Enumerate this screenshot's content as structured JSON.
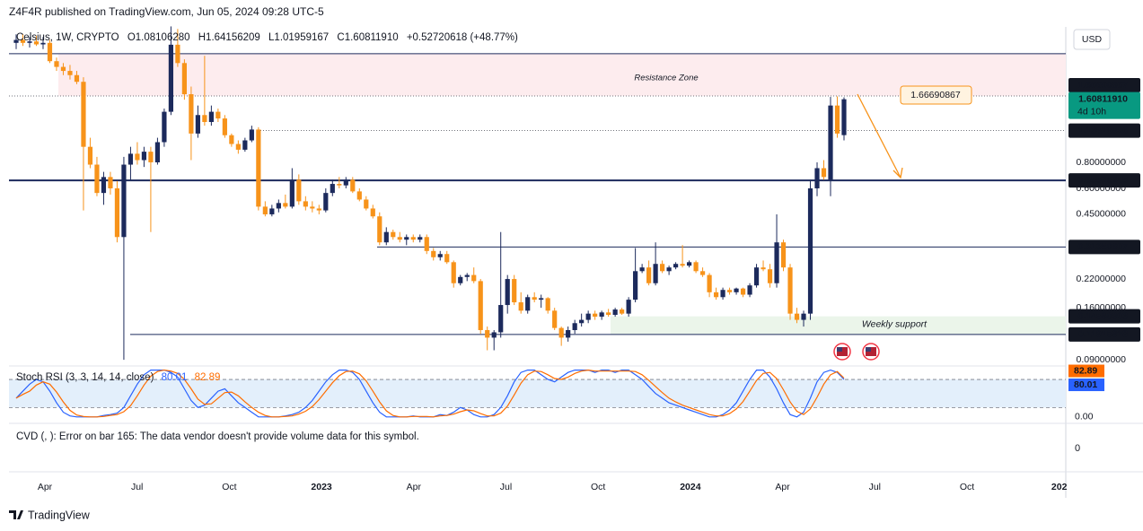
{
  "header": {
    "published": "Z4F4R published on TradingView.com, Jun 05, 2024 09:28 UTC-5",
    "symbol": "Celsius, 1W, CRYPTO",
    "ohlc_prefixes": [
      "O",
      "H",
      "L",
      "C"
    ],
    "change": "+0.52720618 (+48.77%)",
    "currency": "USD",
    "countdown": "4d 10h",
    "logo": "TradingView"
  },
  "chart_data": [
    {
      "type": "candlestick",
      "up_color": "#1c2a5c",
      "down_color": "#f7931a",
      "last_color": "#089981",
      "log_scale": true,
      "ylim": [
        0.0866,
        3.58
      ],
      "yticks": [
        {
          "value": 0.8,
          "label": "0.80000000"
        },
        {
          "value": 0.6,
          "label": "0.60000000"
        },
        {
          "value": 0.45,
          "label": "0.45000000"
        },
        {
          "value": 0.22,
          "label": "0.22000000"
        },
        {
          "value": 0.16,
          "label": "0.16000000"
        },
        {
          "value": 0.09,
          "label": "0.09000000"
        }
      ],
      "xticks": [
        "Apr",
        "Jul",
        "Oct",
        "2023",
        "Apr",
        "Jul",
        "Oct",
        "2024",
        "Apr",
        "Jul",
        "Oct",
        "202"
      ],
      "last_labels": [
        "1.08106280",
        "1.64156209",
        "1.01959167",
        "1.60811910"
      ],
      "levels": [
        {
          "value": 2.66,
          "style": "solid",
          "axis_label": false
        },
        {
          "value": 1.66690867,
          "style": "dotted",
          "axis_label": true
        },
        {
          "value": 1.13618526,
          "style": "dotted",
          "axis_label": true
        },
        {
          "value": 0.65526245,
          "style": "thick",
          "axis_label": true
        },
        {
          "value": 0.31350607,
          "style": "solid",
          "axis_label": true
        },
        {
          "value": 0.14560803,
          "style": "none",
          "axis_label": true
        },
        {
          "value": 0.11915918,
          "style": "solid",
          "axis_label": true
        }
      ],
      "zones": [
        {
          "label": "Resistance Zone",
          "range": [
            1.66690867,
            2.66
          ],
          "color": "#fdecee"
        },
        {
          "label": "Weekly support",
          "range": [
            0.11915918,
            0.14560803
          ],
          "color": "#ebf5ea"
        }
      ],
      "candles": [
        [
          3.0,
          3.3,
          2.8,
          3.1
        ],
        [
          3.1,
          3.3,
          2.9,
          3.0
        ],
        [
          3.0,
          3.2,
          2.85,
          3.05
        ],
        [
          3.05,
          3.25,
          2.9,
          2.95
        ],
        [
          2.95,
          3.2,
          2.8,
          3.0
        ],
        [
          3.0,
          3.1,
          2.4,
          2.45
        ],
        [
          2.45,
          2.55,
          2.2,
          2.3
        ],
        [
          2.3,
          2.4,
          2.1,
          2.2
        ],
        [
          2.2,
          2.35,
          2.0,
          2.1
        ],
        [
          2.1,
          2.2,
          1.9,
          1.95
        ],
        [
          1.95,
          2.05,
          0.47,
          0.95
        ],
        [
          0.95,
          1.05,
          0.75,
          0.78
        ],
        [
          0.78,
          0.85,
          0.55,
          0.57
        ],
        [
          0.57,
          0.72,
          0.5,
          0.68
        ],
        [
          0.68,
          0.72,
          0.56,
          0.6
        ],
        [
          0.6,
          0.65,
          0.33,
          0.35
        ],
        [
          0.35,
          0.85,
          0.09,
          0.78
        ],
        [
          0.78,
          0.95,
          0.65,
          0.88
        ],
        [
          0.88,
          1.0,
          0.78,
          0.82
        ],
        [
          0.82,
          0.95,
          0.76,
          0.9
        ],
        [
          0.9,
          0.95,
          0.37,
          0.8
        ],
        [
          0.8,
          1.05,
          0.78,
          1.0
        ],
        [
          1.0,
          1.45,
          0.95,
          1.4
        ],
        [
          1.4,
          3.6,
          1.35,
          2.94
        ],
        [
          2.94,
          3.5,
          2.3,
          2.4
        ],
        [
          2.4,
          2.5,
          1.6,
          1.7
        ],
        [
          1.7,
          1.85,
          0.82,
          1.1
        ],
        [
          1.1,
          1.5,
          1.05,
          1.35
        ],
        [
          1.35,
          2.6,
          1.2,
          1.25
        ],
        [
          1.25,
          1.5,
          1.2,
          1.4
        ],
        [
          1.4,
          1.45,
          1.25,
          1.3
        ],
        [
          1.3,
          1.35,
          1.05,
          1.08
        ],
        [
          1.08,
          1.1,
          0.95,
          0.98
        ],
        [
          0.98,
          1.02,
          0.88,
          0.92
        ],
        [
          0.92,
          1.05,
          0.9,
          1.02
        ],
        [
          1.02,
          1.2,
          1.0,
          1.15
        ],
        [
          1.15,
          1.18,
          0.47,
          0.49
        ],
        [
          0.49,
          0.52,
          0.44,
          0.45
        ],
        [
          0.45,
          0.5,
          0.44,
          0.48
        ],
        [
          0.48,
          0.53,
          0.46,
          0.51
        ],
        [
          0.51,
          0.56,
          0.48,
          0.49
        ],
        [
          0.49,
          0.75,
          0.48,
          0.66
        ],
        [
          0.66,
          0.7,
          0.5,
          0.52
        ],
        [
          0.52,
          0.55,
          0.47,
          0.49
        ],
        [
          0.49,
          0.52,
          0.46,
          0.48
        ],
        [
          0.48,
          0.5,
          0.45,
          0.47
        ],
        [
          0.47,
          0.6,
          0.46,
          0.57
        ],
        [
          0.57,
          0.66,
          0.55,
          0.63
        ],
        [
          0.63,
          0.68,
          0.6,
          0.62
        ],
        [
          0.62,
          0.68,
          0.6,
          0.66
        ],
        [
          0.66,
          0.68,
          0.57,
          0.58
        ],
        [
          0.58,
          0.6,
          0.52,
          0.53
        ],
        [
          0.53,
          0.55,
          0.47,
          0.48
        ],
        [
          0.48,
          0.5,
          0.43,
          0.44
        ],
        [
          0.44,
          0.46,
          0.32,
          0.33
        ],
        [
          0.33,
          0.39,
          0.32,
          0.37
        ],
        [
          0.37,
          0.38,
          0.34,
          0.35
        ],
        [
          0.35,
          0.37,
          0.33,
          0.34
        ],
        [
          0.34,
          0.36,
          0.32,
          0.35
        ],
        [
          0.35,
          0.36,
          0.33,
          0.34
        ],
        [
          0.34,
          0.36,
          0.33,
          0.35
        ],
        [
          0.35,
          0.36,
          0.29,
          0.3
        ],
        [
          0.3,
          0.31,
          0.27,
          0.28
        ],
        [
          0.28,
          0.3,
          0.27,
          0.29
        ],
        [
          0.29,
          0.3,
          0.26,
          0.265
        ],
        [
          0.265,
          0.27,
          0.2,
          0.21
        ],
        [
          0.21,
          0.23,
          0.205,
          0.225
        ],
        [
          0.225,
          0.235,
          0.215,
          0.23
        ],
        [
          0.23,
          0.25,
          0.21,
          0.215
        ],
        [
          0.215,
          0.22,
          0.12,
          0.125
        ],
        [
          0.125,
          0.13,
          0.1,
          0.115
        ],
        [
          0.115,
          0.125,
          0.1,
          0.122
        ],
        [
          0.122,
          0.37,
          0.115,
          0.165
        ],
        [
          0.165,
          0.23,
          0.15,
          0.22
        ],
        [
          0.22,
          0.23,
          0.165,
          0.17
        ],
        [
          0.17,
          0.19,
          0.15,
          0.155
        ],
        [
          0.155,
          0.185,
          0.15,
          0.18
        ],
        [
          0.18,
          0.19,
          0.17,
          0.175
        ],
        [
          0.175,
          0.185,
          0.16,
          0.178
        ],
        [
          0.178,
          0.18,
          0.15,
          0.155
        ],
        [
          0.155,
          0.16,
          0.125,
          0.128
        ],
        [
          0.128,
          0.13,
          0.105,
          0.115
        ],
        [
          0.115,
          0.13,
          0.11,
          0.125
        ],
        [
          0.125,
          0.14,
          0.12,
          0.135
        ],
        [
          0.135,
          0.15,
          0.13,
          0.14
        ],
        [
          0.14,
          0.155,
          0.135,
          0.15
        ],
        [
          0.15,
          0.155,
          0.14,
          0.145
        ],
        [
          0.145,
          0.155,
          0.14,
          0.152
        ],
        [
          0.152,
          0.158,
          0.145,
          0.148
        ],
        [
          0.148,
          0.16,
          0.145,
          0.157
        ],
        [
          0.157,
          0.16,
          0.148,
          0.15
        ],
        [
          0.15,
          0.18,
          0.145,
          0.175
        ],
        [
          0.175,
          0.31,
          0.17,
          0.24
        ],
        [
          0.24,
          0.26,
          0.235,
          0.25
        ],
        [
          0.25,
          0.27,
          0.205,
          0.21
        ],
        [
          0.21,
          0.33,
          0.205,
          0.26
        ],
        [
          0.26,
          0.27,
          0.235,
          0.24
        ],
        [
          0.24,
          0.255,
          0.23,
          0.25
        ],
        [
          0.25,
          0.265,
          0.245,
          0.26
        ],
        [
          0.26,
          0.32,
          0.25,
          0.255
        ],
        [
          0.255,
          0.27,
          0.25,
          0.265
        ],
        [
          0.265,
          0.27,
          0.235,
          0.24
        ],
        [
          0.24,
          0.25,
          0.225,
          0.23
        ],
        [
          0.23,
          0.235,
          0.18,
          0.19
        ],
        [
          0.19,
          0.2,
          0.175,
          0.18
        ],
        [
          0.18,
          0.2,
          0.175,
          0.195
        ],
        [
          0.195,
          0.2,
          0.185,
          0.19
        ],
        [
          0.19,
          0.2,
          0.185,
          0.198
        ],
        [
          0.198,
          0.2,
          0.18,
          0.185
        ],
        [
          0.185,
          0.21,
          0.18,
          0.205
        ],
        [
          0.205,
          0.26,
          0.2,
          0.25
        ],
        [
          0.25,
          0.27,
          0.24,
          0.245
        ],
        [
          0.245,
          0.26,
          0.2,
          0.21
        ],
        [
          0.21,
          0.45,
          0.2,
          0.33
        ],
        [
          0.33,
          0.34,
          0.24,
          0.25
        ],
        [
          0.25,
          0.26,
          0.14,
          0.15
        ],
        [
          0.15,
          0.16,
          0.135,
          0.14
        ],
        [
          0.14,
          0.155,
          0.13,
          0.15
        ],
        [
          0.15,
          0.66,
          0.14,
          0.6
        ],
        [
          0.6,
          0.8,
          0.55,
          0.75
        ],
        [
          0.75,
          0.82,
          0.66,
          0.68
        ],
        [
          0.66,
          1.65,
          0.55,
          1.5
        ],
        [
          1.5,
          1.66,
          1.05,
          1.1
        ],
        [
          1.0810628,
          1.64156209,
          1.01959167,
          1.6081191
        ]
      ]
    },
    {
      "type": "line",
      "title": "Stoch RSI (3, 3, 14, 14, close)",
      "ylim": [
        -10,
        105
      ],
      "yticks": [
        {
          "value": 0,
          "label": "0.00"
        }
      ],
      "bands": [
        20,
        80
      ],
      "band_color": "#e3effb",
      "series": [
        {
          "color": "#2962ff",
          "values": [
            40,
            55,
            70,
            80,
            75,
            55,
            30,
            10,
            2,
            0,
            0,
            0,
            0,
            3,
            5,
            8,
            20,
            45,
            70,
            90,
            100,
            100,
            100,
            95,
            85,
            60,
            35,
            20,
            25,
            40,
            55,
            60,
            45,
            30,
            20,
            10,
            0,
            0,
            0,
            0,
            2,
            5,
            10,
            20,
            35,
            55,
            75,
            90,
            100,
            100,
            95,
            80,
            55,
            30,
            10,
            0,
            0,
            0,
            0,
            2,
            0,
            0,
            0,
            5,
            3,
            10,
            20,
            15,
            5,
            0,
            0,
            5,
            20,
            45,
            75,
            95,
            100,
            100,
            90,
            80,
            75,
            85,
            95,
            100,
            100,
            100,
            95,
            100,
            100,
            95,
            100,
            100,
            90,
            80,
            65,
            50,
            40,
            30,
            25,
            20,
            15,
            10,
            5,
            0,
            0,
            5,
            15,
            30,
            55,
            80,
            100,
            100,
            85,
            60,
            30,
            5,
            0,
            10,
            40,
            75,
            95,
            100,
            95,
            80.01
          ]
        },
        {
          "color": "#ff6d00",
          "values": [
            40,
            48,
            55,
            68,
            75,
            70,
            53,
            32,
            14,
            4,
            1,
            0,
            0,
            1,
            3,
            5,
            11,
            24,
            45,
            68,
            87,
            97,
            100,
            98,
            93,
            80,
            60,
            38,
            27,
            28,
            40,
            52,
            53,
            45,
            32,
            20,
            10,
            3,
            0,
            0,
            1,
            2,
            6,
            12,
            22,
            37,
            55,
            73,
            88,
            97,
            98,
            92,
            77,
            55,
            32,
            13,
            3,
            0,
            0,
            1,
            1,
            1,
            0,
            2,
            3,
            6,
            11,
            15,
            13,
            7,
            2,
            2,
            8,
            23,
            47,
            72,
            90,
            98,
            97,
            90,
            82,
            80,
            85,
            93,
            98,
            100,
            98,
            98,
            98,
            98,
            98,
            98,
            97,
            90,
            78,
            65,
            52,
            40,
            32,
            25,
            20,
            15,
            10,
            5,
            2,
            2,
            7,
            17,
            33,
            55,
            78,
            93,
            95,
            82,
            58,
            32,
            12,
            5,
            17,
            42,
            70,
            90,
            97,
            82.89
          ]
        }
      ]
    }
  ],
  "cvd": {
    "message": "CVD (, ): Error on bar 165: The data vendor doesn't provide volume data for this symbol.",
    "yticks": [
      0
    ]
  }
}
